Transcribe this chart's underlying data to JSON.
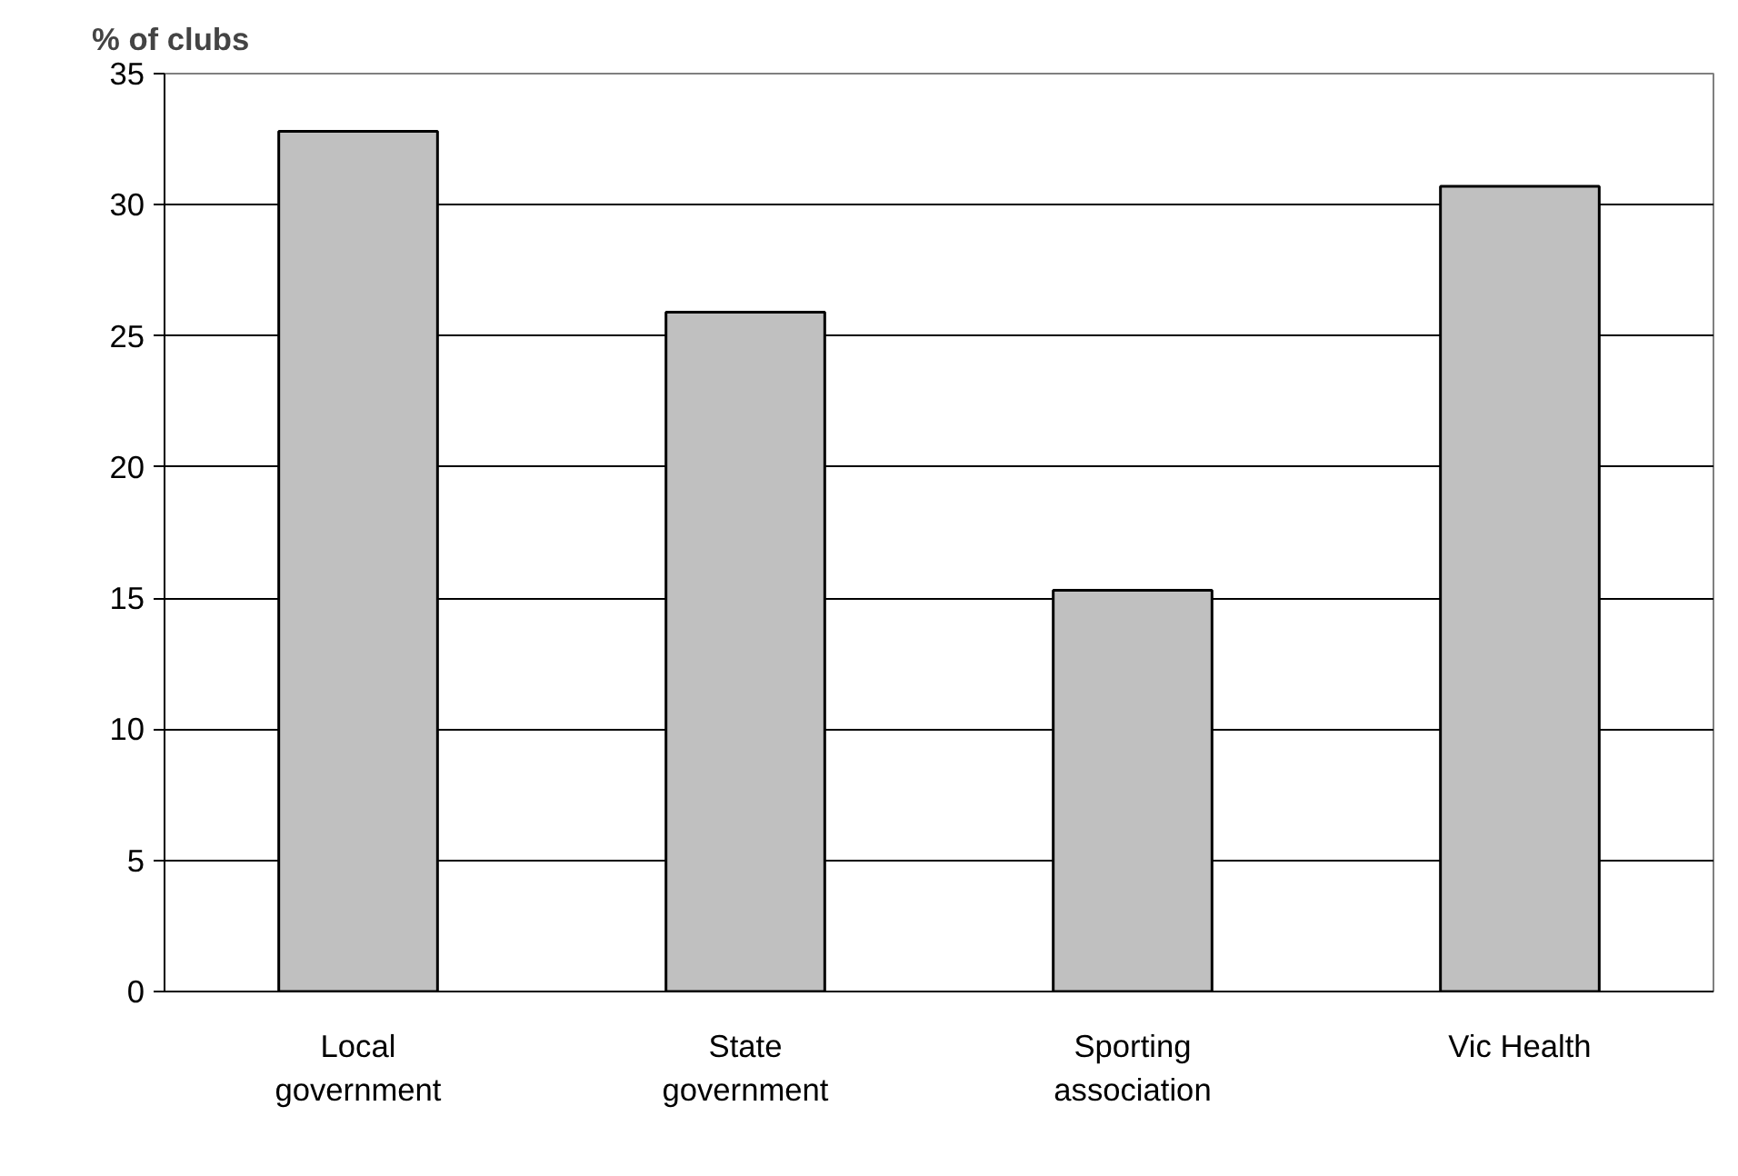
{
  "chart_data": {
    "type": "bar",
    "ylabel": "% of clubs",
    "categories": [
      "Local\ngovernment",
      "State\ngovernment",
      "Sporting\nassociation",
      "Vic Health"
    ],
    "values": [
      32.8,
      25.9,
      15.3,
      30.7
    ],
    "color": "#c0c0c0",
    "ylim": [
      0,
      35
    ],
    "yticks": [
      0,
      5,
      10,
      15,
      20,
      25,
      30,
      35
    ],
    "grid": "y"
  }
}
